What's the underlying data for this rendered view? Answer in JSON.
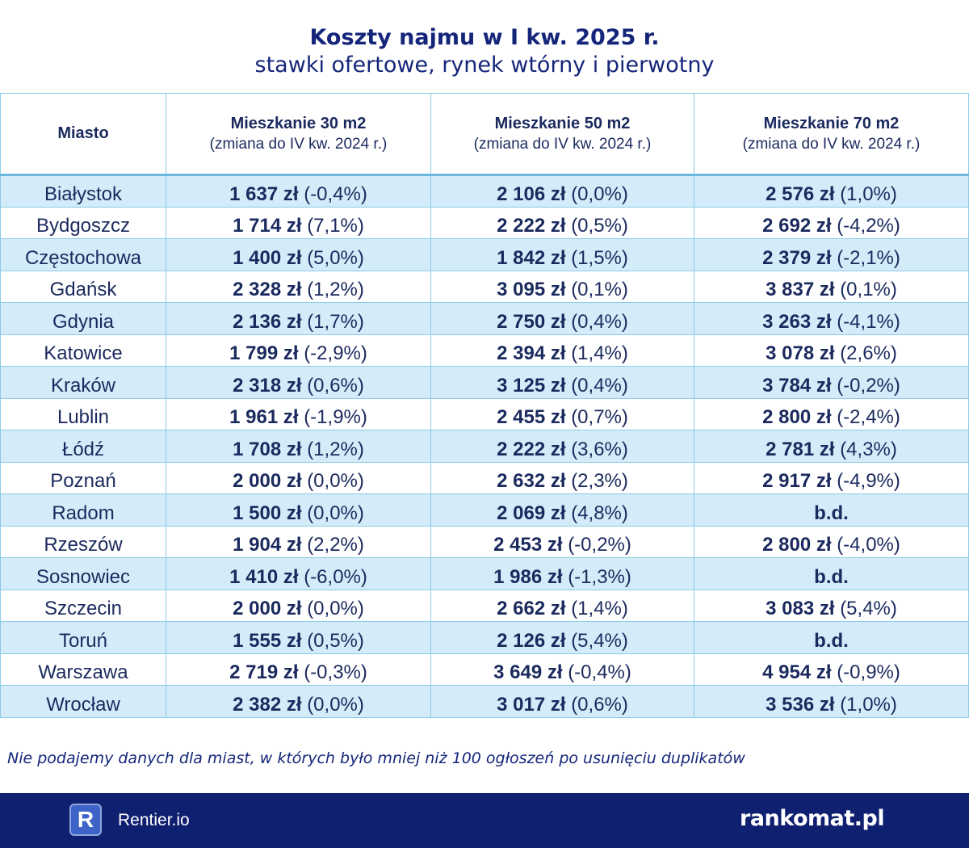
{
  "title": "Koszty najmu w I kw. 2025 r.",
  "subtitle": "stawki ofertowe, rynek wtórny i pierwotny",
  "note": "Nie podajemy danych dla miast, w których było mniej niż 100 ogłoszeń po usunięciu duplikatów",
  "footer": {
    "rentier_logo_letter": "R",
    "rentier_label": "Rentier.io",
    "rankomat_label": "rankomat.pl"
  },
  "colors": {
    "navy": "#0f2070",
    "row_highlight": "#d4ecf9",
    "border": "#8ccbe9"
  },
  "chart_data": {
    "type": "table",
    "title": "Koszty najmu w I kw. 2025 r.",
    "subtitle": "stawki ofertowe, rynek wtórny i pierwotny",
    "columns": [
      {
        "label": "Miasto"
      },
      {
        "label": "Mieszkanie 30 m2",
        "sub": "(zmiana do IV kw. 2024 r.)"
      },
      {
        "label": "Mieszkanie 50 m2",
        "sub": "(zmiana do IV kw. 2024 r.)"
      },
      {
        "label": "Mieszkanie 70 m2",
        "sub": "(zmiana do IV kw. 2024 r.)"
      }
    ],
    "rows": [
      {
        "city": "Białystok",
        "cells": [
          {
            "price": "1 637 zł",
            "change": "(-0,4%)"
          },
          {
            "price": "2 106 zł",
            "change": "(0,0%)"
          },
          {
            "price": "2 576 zł",
            "change": "(1,0%)"
          }
        ]
      },
      {
        "city": "Bydgoszcz",
        "cells": [
          {
            "price": "1 714 zł",
            "change": "(7,1%)"
          },
          {
            "price": "2 222 zł",
            "change": "(0,5%)"
          },
          {
            "price": "2 692 zł",
            "change": "(-4,2%)"
          }
        ]
      },
      {
        "city": "Częstochowa",
        "cells": [
          {
            "price": "1 400 zł",
            "change": "(5,0%)"
          },
          {
            "price": "1 842 zł",
            "change": "(1,5%)"
          },
          {
            "price": "2 379 zł",
            "change": "(-2,1%)"
          }
        ]
      },
      {
        "city": "Gdańsk",
        "cells": [
          {
            "price": "2 328 zł",
            "change": "(1,2%)"
          },
          {
            "price": "3 095 zł",
            "change": "(0,1%)"
          },
          {
            "price": "3 837 zł",
            "change": "(0,1%)"
          }
        ]
      },
      {
        "city": "Gdynia",
        "cells": [
          {
            "price": "2 136 zł",
            "change": "(1,7%)"
          },
          {
            "price": "2 750 zł",
            "change": "(0,4%)"
          },
          {
            "price": "3 263 zł",
            "change": "(-4,1%)"
          }
        ]
      },
      {
        "city": "Katowice",
        "cells": [
          {
            "price": "1 799 zł",
            "change": "(-2,9%)"
          },
          {
            "price": "2 394 zł",
            "change": "(1,4%)"
          },
          {
            "price": "3 078 zł",
            "change": "(2,6%)"
          }
        ]
      },
      {
        "city": "Kraków",
        "cells": [
          {
            "price": "2 318 zł",
            "change": "(0,6%)"
          },
          {
            "price": "3 125 zł",
            "change": "(0,4%)"
          },
          {
            "price": "3 784 zł",
            "change": "(-0,2%)"
          }
        ]
      },
      {
        "city": "Lublin",
        "cells": [
          {
            "price": "1 961 zł",
            "change": "(-1,9%)"
          },
          {
            "price": "2 455 zł",
            "change": "(0,7%)"
          },
          {
            "price": "2 800 zł",
            "change": "(-2,4%)"
          }
        ]
      },
      {
        "city": "Łódź",
        "cells": [
          {
            "price": "1 708 zł",
            "change": "(1,2%)"
          },
          {
            "price": "2 222 zł",
            "change": "(3,6%)"
          },
          {
            "price": "2 781 zł",
            "change": "(4,3%)"
          }
        ]
      },
      {
        "city": "Poznań",
        "cells": [
          {
            "price": "2 000 zł",
            "change": "(0,0%)"
          },
          {
            "price": "2 632 zł",
            "change": "(2,3%)"
          },
          {
            "price": "2 917 zł",
            "change": "(-4,9%)"
          }
        ]
      },
      {
        "city": "Radom",
        "cells": [
          {
            "price": "1 500 zł",
            "change": "(0,0%)"
          },
          {
            "price": "2 069 zł",
            "change": "(4,8%)"
          },
          {
            "price": "b.d.",
            "change": ""
          }
        ]
      },
      {
        "city": "Rzeszów",
        "cells": [
          {
            "price": "1 904 zł",
            "change": "(2,2%)"
          },
          {
            "price": "2 453 zł",
            "change": "(-0,2%)"
          },
          {
            "price": "2 800 zł",
            "change": "(-4,0%)"
          }
        ]
      },
      {
        "city": "Sosnowiec",
        "cells": [
          {
            "price": "1 410 zł",
            "change": "(-6,0%)"
          },
          {
            "price": "1 986 zł",
            "change": "(-1,3%)"
          },
          {
            "price": "b.d.",
            "change": ""
          }
        ]
      },
      {
        "city": "Szczecin",
        "cells": [
          {
            "price": "2 000 zł",
            "change": "(0,0%)"
          },
          {
            "price": "2 662 zł",
            "change": "(1,4%)"
          },
          {
            "price": "3 083 zł",
            "change": "(5,4%)"
          }
        ]
      },
      {
        "city": "Toruń",
        "cells": [
          {
            "price": "1 555 zł",
            "change": "(0,5%)"
          },
          {
            "price": "2 126 zł",
            "change": "(5,4%)"
          },
          {
            "price": "b.d.",
            "change": ""
          }
        ]
      },
      {
        "city": "Warszawa",
        "cells": [
          {
            "price": "2 719 zł",
            "change": "(-0,3%)"
          },
          {
            "price": "3 649 zł",
            "change": "(-0,4%)"
          },
          {
            "price": "4 954 zł",
            "change": "(-0,9%)"
          }
        ]
      },
      {
        "city": "Wrocław",
        "cells": [
          {
            "price": "2 382 zł",
            "change": "(0,0%)"
          },
          {
            "price": "3 017 zł",
            "change": "(0,6%)"
          },
          {
            "price": "3 536 zł",
            "change": "(1,0%)"
          }
        ]
      }
    ]
  }
}
